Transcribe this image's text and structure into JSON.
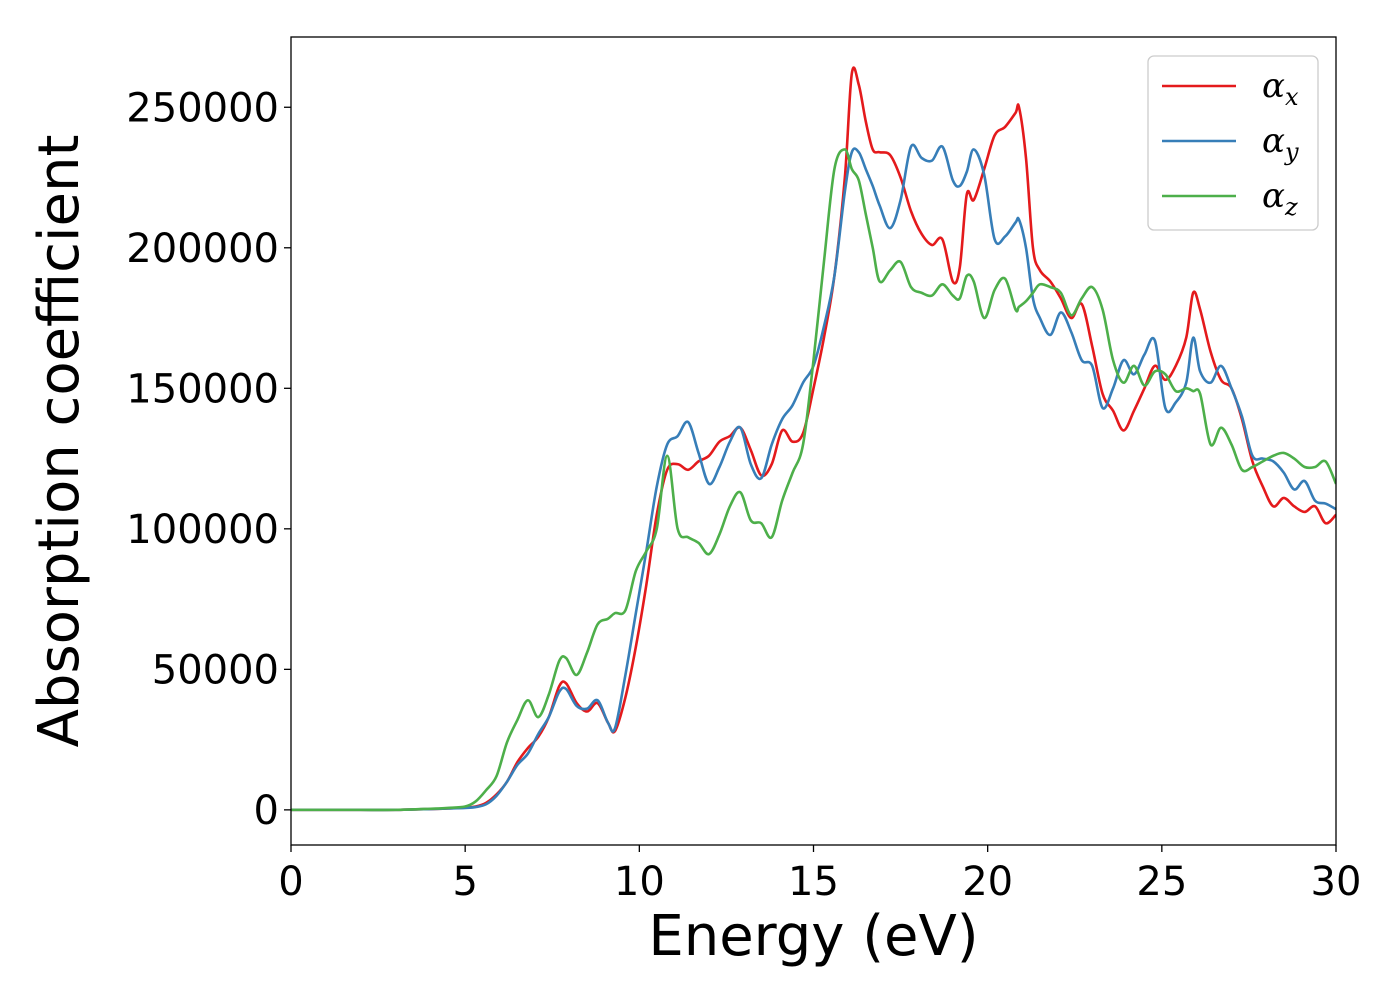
{
  "chart_data": {
    "type": "line",
    "xlabel": "Energy (eV)",
    "ylabel": "Absorption coefficient",
    "xlim": [
      0,
      30
    ],
    "ylim": [
      -12500,
      275000
    ],
    "xticks": [
      0,
      5,
      10,
      15,
      20,
      25,
      30
    ],
    "yticks": [
      0,
      50000,
      100000,
      150000,
      200000,
      250000
    ],
    "grid": false,
    "legend_position": "top-right",
    "series": [
      {
        "name": "α_x",
        "label_main": "α",
        "label_sub": "x",
        "color": "#e41a1c",
        "x": [
          0,
          1,
          2,
          3,
          4,
          4.5,
          5,
          5.3,
          5.6,
          5.9,
          6.2,
          6.5,
          6.8,
          7.1,
          7.4,
          7.7,
          7.9,
          8.2,
          8.5,
          8.8,
          9.1,
          9.3,
          9.6,
          9.9,
          10.2,
          10.5,
          10.8,
          11.1,
          11.4,
          11.7,
          12,
          12.3,
          12.6,
          12.9,
          13.2,
          13.5,
          13.8,
          14.1,
          14.4,
          14.7,
          15.0,
          15.3,
          15.6,
          15.9,
          16.1,
          16.3,
          16.5,
          16.7,
          16.9,
          17.2,
          17.5,
          17.8,
          18.1,
          18.4,
          18.7,
          19.0,
          19.2,
          19.4,
          19.6,
          19.9,
          20.2,
          20.5,
          20.8,
          20.9,
          21.1,
          21.3,
          21.5,
          21.8,
          22.1,
          22.4,
          22.7,
          23.0,
          23.3,
          23.6,
          23.9,
          24.2,
          24.5,
          24.8,
          25.1,
          25.4,
          25.7,
          25.9,
          26.1,
          26.4,
          26.7,
          27.0,
          27.3,
          27.6,
          27.9,
          28.2,
          28.5,
          28.8,
          29.1,
          29.4,
          29.7,
          30.0
        ],
        "values": [
          0,
          0,
          0,
          0,
          300,
          500,
          800,
          1200,
          2500,
          5500,
          10000,
          17000,
          22000,
          26000,
          33000,
          44000,
          45000,
          38000,
          35000,
          38000,
          31000,
          28000,
          40000,
          58000,
          80000,
          105000,
          121000,
          123000,
          121000,
          124000,
          126000,
          131000,
          133000,
          136000,
          128000,
          119000,
          123000,
          135000,
          131000,
          134000,
          150000,
          168000,
          190000,
          225000,
          262000,
          258000,
          245000,
          235000,
          234000,
          233000,
          225000,
          213000,
          205000,
          201000,
          203000,
          188000,
          193000,
          219000,
          217000,
          228000,
          240000,
          243000,
          248000,
          250000,
          232000,
          200000,
          192000,
          188000,
          182000,
          175000,
          180000,
          165000,
          148000,
          142000,
          135000,
          142000,
          150000,
          158000,
          153000,
          158000,
          168000,
          184000,
          178000,
          163000,
          153000,
          150000,
          139000,
          124000,
          115000,
          108000,
          111000,
          108000,
          106000,
          108000,
          102000,
          105000
        ]
      },
      {
        "name": "α_y",
        "label_main": "α",
        "label_sub": "y",
        "color": "#377eb8",
        "x": [
          0,
          1,
          2,
          3,
          4,
          4.5,
          5,
          5.3,
          5.6,
          5.9,
          6.2,
          6.5,
          6.8,
          7.1,
          7.4,
          7.7,
          7.9,
          8.2,
          8.5,
          8.8,
          9.1,
          9.3,
          9.6,
          9.9,
          10.2,
          10.5,
          10.8,
          11.1,
          11.4,
          11.7,
          12,
          12.3,
          12.6,
          12.9,
          13.2,
          13.5,
          13.8,
          14.1,
          14.4,
          14.7,
          15.0,
          15.3,
          15.6,
          15.9,
          16.1,
          16.3,
          16.5,
          16.7,
          16.9,
          17.2,
          17.5,
          17.8,
          18.1,
          18.4,
          18.7,
          19.0,
          19.2,
          19.4,
          19.6,
          19.9,
          20.2,
          20.5,
          20.8,
          20.9,
          21.1,
          21.3,
          21.5,
          21.8,
          22.1,
          22.4,
          22.7,
          23.0,
          23.3,
          23.6,
          23.9,
          24.2,
          24.5,
          24.8,
          25.1,
          25.4,
          25.7,
          25.9,
          26.1,
          26.4,
          26.7,
          27.0,
          27.3,
          27.6,
          27.9,
          28.2,
          28.5,
          28.8,
          29.1,
          29.4,
          29.7,
          30.0
        ],
        "values": [
          0,
          0,
          0,
          0,
          300,
          500,
          700,
          1000,
          2000,
          5000,
          10000,
          16000,
          20000,
          27000,
          33000,
          42000,
          43000,
          37000,
          36000,
          39000,
          31000,
          29000,
          48000,
          70000,
          92000,
          115000,
          130000,
          133000,
          138000,
          127000,
          116000,
          122000,
          131000,
          136000,
          123000,
          118000,
          130000,
          139000,
          144000,
          152000,
          158000,
          172000,
          190000,
          220000,
          234000,
          234000,
          228000,
          222000,
          215000,
          207000,
          217000,
          236000,
          232000,
          231000,
          236000,
          224000,
          222000,
          227000,
          235000,
          226000,
          203000,
          204000,
          209000,
          210000,
          200000,
          182000,
          175000,
          169000,
          177000,
          170000,
          160000,
          158000,
          143000,
          150000,
          160000,
          155000,
          162000,
          167000,
          143000,
          145000,
          152000,
          168000,
          156000,
          152000,
          158000,
          150000,
          140000,
          126000,
          125000,
          124000,
          120000,
          114000,
          117000,
          110000,
          109000,
          107000
        ]
      },
      {
        "name": "α_z",
        "label_main": "α",
        "label_sub": "z",
        "color": "#4daf4a",
        "x": [
          0,
          1,
          2,
          3,
          4,
          4.5,
          5,
          5.3,
          5.6,
          5.9,
          6.2,
          6.5,
          6.8,
          7.1,
          7.4,
          7.7,
          7.9,
          8.2,
          8.5,
          8.8,
          9.1,
          9.3,
          9.6,
          9.9,
          10.2,
          10.5,
          10.8,
          11.1,
          11.4,
          11.7,
          12,
          12.3,
          12.6,
          12.9,
          13.2,
          13.5,
          13.8,
          14.1,
          14.4,
          14.7,
          15.0,
          15.3,
          15.6,
          15.9,
          16.1,
          16.3,
          16.5,
          16.7,
          16.9,
          17.2,
          17.5,
          17.8,
          18.1,
          18.4,
          18.7,
          19.0,
          19.2,
          19.4,
          19.6,
          19.9,
          20.2,
          20.5,
          20.8,
          20.9,
          21.1,
          21.3,
          21.5,
          21.8,
          22.1,
          22.4,
          22.7,
          23.0,
          23.3,
          23.6,
          23.9,
          24.2,
          24.5,
          24.8,
          25.1,
          25.4,
          25.7,
          25.9,
          26.1,
          26.4,
          26.7,
          27.0,
          27.3,
          27.6,
          27.9,
          28.2,
          28.5,
          28.8,
          29.1,
          29.4,
          29.7,
          30.0
        ],
        "values": [
          0,
          0,
          0,
          0,
          400,
          700,
          1200,
          3000,
          7000,
          12000,
          24000,
          32000,
          39000,
          33000,
          41000,
          53000,
          54000,
          48000,
          56000,
          66000,
          68000,
          70000,
          71000,
          85000,
          92000,
          100000,
          126000,
          100000,
          97000,
          95000,
          91000,
          98000,
          108000,
          113000,
          103000,
          102000,
          97000,
          110000,
          120000,
          130000,
          160000,
          195000,
          228000,
          235000,
          228000,
          224000,
          212000,
          200000,
          188000,
          192000,
          195000,
          186000,
          184000,
          183000,
          187000,
          183000,
          182000,
          190000,
          188000,
          175000,
          185000,
          189000,
          178000,
          179000,
          181000,
          184000,
          187000,
          186000,
          184000,
          176000,
          182000,
          186000,
          178000,
          160000,
          152000,
          158000,
          151000,
          156000,
          155000,
          149000,
          150000,
          149000,
          148000,
          130000,
          136000,
          130000,
          121000,
          122000,
          124000,
          126000,
          127000,
          125000,
          122000,
          122000,
          124000,
          116000
        ]
      }
    ]
  }
}
